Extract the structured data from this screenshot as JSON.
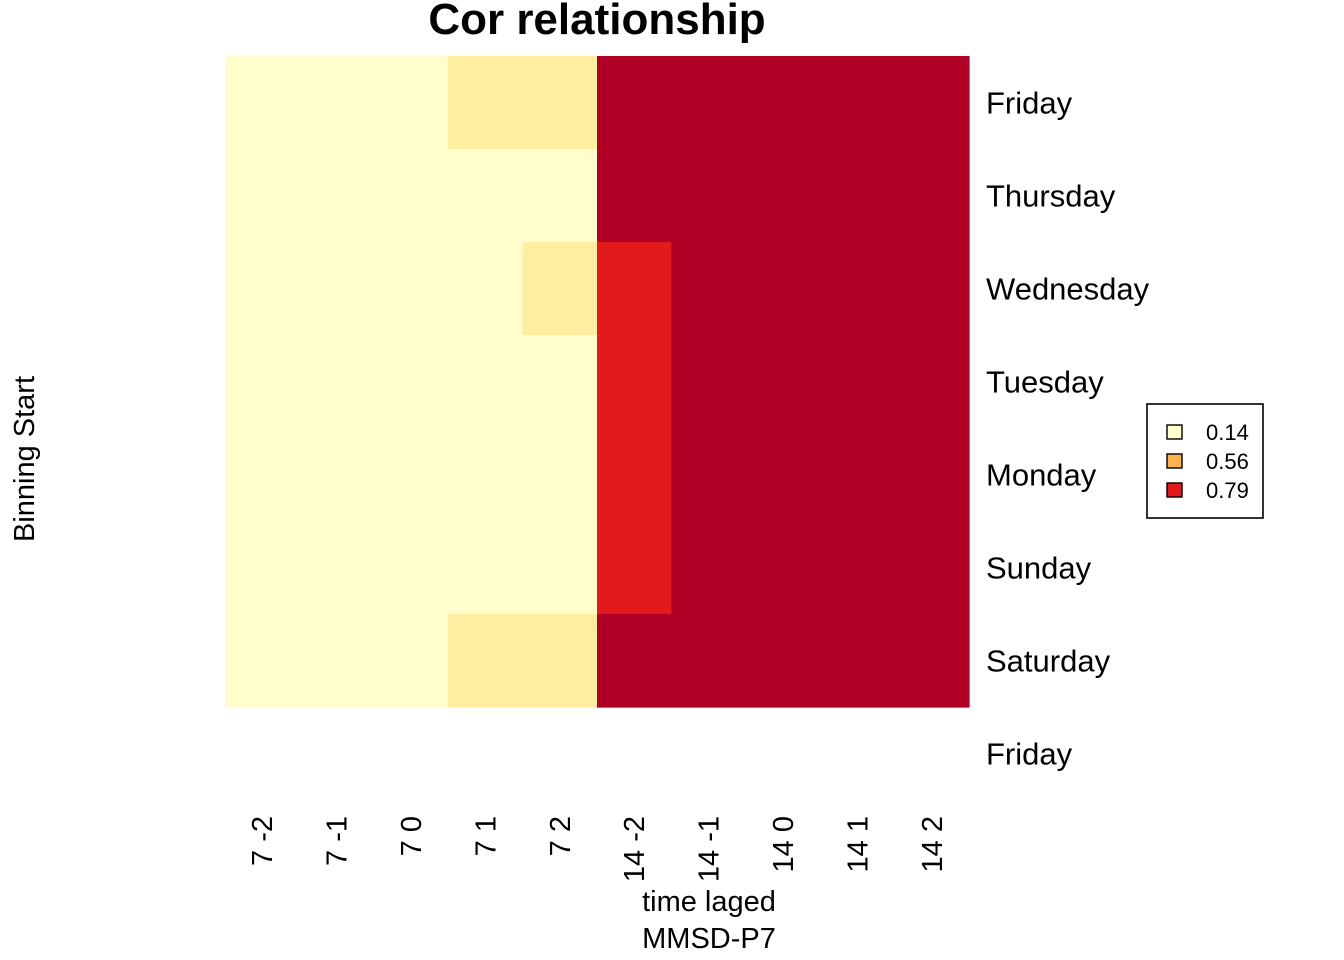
{
  "chart_data": {
    "type": "heatmap",
    "title": "Cor relationship",
    "xlabel": "time laged",
    "sublabel": "MMSD-P7",
    "ylabel": "Binning Start",
    "x": [
      "7 -2",
      "7 -1",
      "7 0",
      "7 1",
      "7 2",
      "14 -2",
      "14 -1",
      "14 0",
      "14 1",
      "14 2"
    ],
    "y": [
      "Friday",
      "Saturday",
      "Sunday",
      "Monday",
      "Tuesday",
      "Wednesday",
      "Thursday",
      "Friday"
    ],
    "levels": [
      {
        "label": "0.14",
        "color": "#FFFFCC"
      },
      {
        "label": "0.56",
        "color": "#FEB24C"
      },
      {
        "label": "0.79",
        "color": "#E31A1C"
      }
    ],
    "cell_colors": {
      "lightest": "#FFFDCC",
      "light": "#FFEDA0",
      "red": "#E31A1C",
      "darkred": "#B10026"
    },
    "values": [
      [
        "lightest",
        "lightest",
        "lightest",
        "light",
        "light",
        "darkred",
        "darkred",
        "darkred",
        "darkred",
        "darkred"
      ],
      [
        "lightest",
        "lightest",
        "lightest",
        "lightest",
        "lightest",
        "darkred",
        "darkred",
        "darkred",
        "darkred",
        "darkred"
      ],
      [
        "lightest",
        "lightest",
        "lightest",
        "lightest",
        "light",
        "red",
        "darkred",
        "darkred",
        "darkred",
        "darkred"
      ],
      [
        "lightest",
        "lightest",
        "lightest",
        "lightest",
        "lightest",
        "red",
        "darkred",
        "darkred",
        "darkred",
        "darkred"
      ],
      [
        "lightest",
        "lightest",
        "lightest",
        "lightest",
        "lightest",
        "red",
        "darkred",
        "darkred",
        "darkred",
        "darkred"
      ],
      [
        "lightest",
        "lightest",
        "lightest",
        "lightest",
        "lightest",
        "red",
        "darkred",
        "darkred",
        "darkred",
        "darkred"
      ],
      [
        "lightest",
        "lightest",
        "lightest",
        "light",
        "light",
        "darkred",
        "darkred",
        "darkred",
        "darkred",
        "darkred"
      ]
    ],
    "legend": "right"
  }
}
